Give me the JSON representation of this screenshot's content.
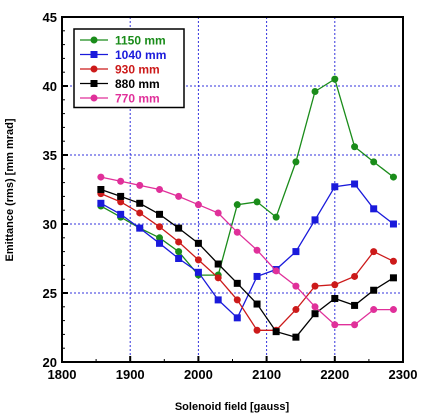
{
  "chart_data": {
    "type": "line",
    "xlabel": "Solenoid field [gauss]",
    "ylabel": "Emittance (rms) [mm mrad]",
    "xlim": [
      1800,
      2300
    ],
    "ylim": [
      20,
      45
    ],
    "xticks": [
      "1800",
      "1900",
      "2000",
      "2100",
      "2200",
      "2300"
    ],
    "yticks": [
      "20",
      "25",
      "30",
      "35",
      "40",
      "45"
    ],
    "grid": true,
    "legend_position": "top-left",
    "series": [
      {
        "name": "1150 mm",
        "color": "#1a8c1a",
        "marker": "circle",
        "x": [
          1857,
          1886,
          1914,
          1943,
          1971,
          2000,
          2029,
          2057,
          2086,
          2114,
          2143,
          2171,
          2200,
          2229,
          2257,
          2286
        ],
        "y": [
          31.3,
          30.5,
          29.7,
          29.0,
          28.0,
          26.3,
          26.3,
          31.4,
          31.6,
          30.5,
          34.5,
          39.6,
          40.5,
          35.6,
          34.5,
          33.4
        ]
      },
      {
        "name": "1040 mm",
        "color": "#1a1adb",
        "marker": "square",
        "x": [
          1857,
          1886,
          1914,
          1943,
          1971,
          2000,
          2029,
          2057,
          2086,
          2114,
          2143,
          2171,
          2200,
          2229,
          2257,
          2286
        ],
        "y": [
          31.5,
          30.7,
          29.7,
          28.6,
          27.5,
          26.5,
          24.5,
          23.2,
          26.2,
          26.7,
          28.0,
          30.3,
          32.7,
          32.9,
          31.1,
          30.0
        ]
      },
      {
        "name": "930 mm",
        "color": "#cc1a1a",
        "marker": "circle",
        "x": [
          1857,
          1886,
          1914,
          1943,
          1971,
          2000,
          2029,
          2057,
          2086,
          2114,
          2143,
          2171,
          2200,
          2229,
          2257,
          2286
        ],
        "y": [
          32.2,
          31.6,
          30.8,
          29.8,
          28.7,
          27.4,
          26.1,
          24.5,
          22.3,
          22.3,
          23.8,
          25.5,
          25.6,
          26.2,
          28.0,
          27.3
        ]
      },
      {
        "name": "880 mm",
        "color": "#000000",
        "marker": "square",
        "x": [
          1857,
          1886,
          1914,
          1943,
          1971,
          2000,
          2029,
          2057,
          2086,
          2114,
          2143,
          2171,
          2200,
          2229,
          2257,
          2286
        ],
        "y": [
          32.5,
          32.0,
          31.5,
          30.7,
          29.7,
          28.6,
          27.1,
          25.7,
          24.2,
          22.2,
          21.8,
          23.5,
          24.6,
          24.1,
          25.2,
          26.1
        ]
      },
      {
        "name": "770 mm",
        "color": "#e0309a",
        "marker": "circle",
        "x": [
          1857,
          1886,
          1914,
          1943,
          1971,
          2000,
          2029,
          2057,
          2086,
          2114,
          2143,
          2171,
          2200,
          2229,
          2257,
          2286
        ],
        "y": [
          33.4,
          33.1,
          32.8,
          32.5,
          32.0,
          31.4,
          30.8,
          29.4,
          28.1,
          26.6,
          25.5,
          24.0,
          22.7,
          22.7,
          23.8,
          23.8
        ]
      }
    ]
  }
}
